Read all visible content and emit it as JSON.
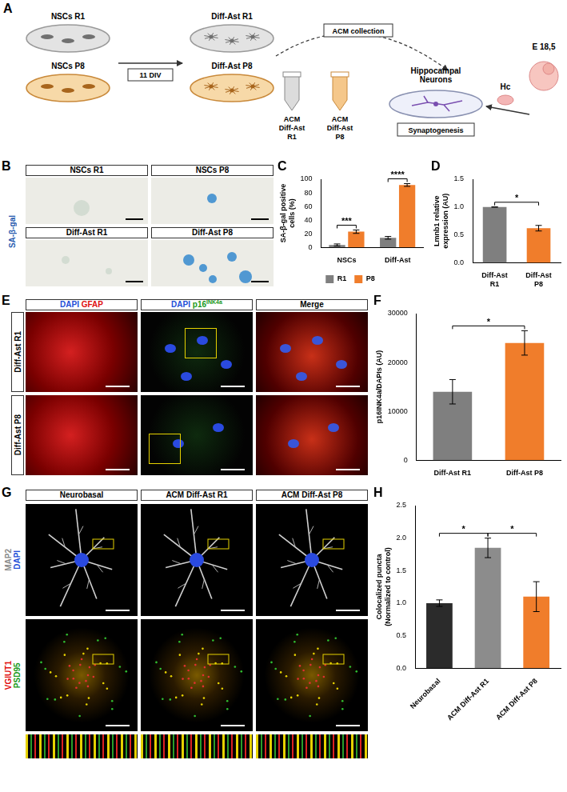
{
  "schematic": {
    "panel": "A",
    "source_dishes": [
      "NSCs R1",
      "NSCs P8"
    ],
    "step": "11 DIV",
    "target_dishes": [
      "Diff-Ast R1",
      "Diff-Ast P8"
    ],
    "collection": "ACM collection",
    "tubes": [
      "ACM Diff-Ast R1",
      "ACM Diff-Ast P8"
    ],
    "neurons": "Hippocampal Neurons",
    "assay": "Synaptogenesis",
    "tissue": "Hc",
    "embryo": "E 18,5"
  },
  "images_B": {
    "panel": "B",
    "row_title": "SA-β-gal",
    "cells": [
      [
        "NSCs R1",
        "NSCs P8"
      ],
      [
        "Diff-Ast R1",
        "Diff-Ast P8"
      ]
    ]
  },
  "images_E": {
    "panel": "E",
    "columns": [
      [
        {
          "text": "DAPI",
          "color": "#1f4fd8"
        },
        {
          "text": "GFAP",
          "color": "#e01010"
        }
      ],
      [
        {
          "text": "DAPI",
          "color": "#1f4fd8"
        },
        {
          "text": "p16",
          "sup": "INK4a",
          "color": "#1a9a1a"
        }
      ],
      [
        {
          "text": "Merge"
        }
      ]
    ],
    "rows": [
      "Diff-Ast R1",
      "Diff-Ast P8"
    ]
  },
  "images_G": {
    "panel": "G",
    "columns": [
      "Neurobasal",
      "ACM Diff-Ast R1",
      "ACM Diff-Ast P8"
    ],
    "rows": [
      [
        {
          "text": "MAP2",
          "color": "#8a8a8a"
        },
        {
          "text": "DAPI",
          "color": "#1f4fd8"
        }
      ],
      [
        {
          "text": "VGlUT1",
          "color": "#e01010"
        },
        {
          "text": "PSD95",
          "color": "#1a9a1a"
        }
      ]
    ]
  },
  "chart_data": [
    {
      "panel": "C",
      "type": "bar",
      "categories": [
        "NSCs",
        "Diff-Ast"
      ],
      "series": [
        {
          "name": "R1",
          "color": "#7f7f7f",
          "values": [
            3.5,
            14
          ],
          "errors": [
            1.5,
            2
          ]
        },
        {
          "name": "P8",
          "color": "#f07d2b",
          "values": [
            23,
            91.5
          ],
          "errors": [
            2.5,
            2
          ]
        }
      ],
      "y_label": "SA-β-gal positive cells (%)",
      "ylim": [
        0,
        100
      ],
      "yticks": [
        0,
        20,
        40,
        60,
        80,
        100
      ],
      "grid": false,
      "legend": "bottom",
      "annotations": [
        {
          "text": "***",
          "between": [
            [
              "NSCs",
              "R1"
            ],
            [
              "NSCs",
              "P8"
            ]
          ]
        },
        {
          "text": "****",
          "between": [
            [
              "Diff-Ast",
              "R1"
            ],
            [
              "Diff-Ast",
              "P8"
            ]
          ]
        }
      ]
    },
    {
      "panel": "D",
      "type": "bar",
      "categories": [
        "Diff-Ast R1",
        "Diff-Ast P8"
      ],
      "values": [
        1.0,
        0.62
      ],
      "errors": [
        0,
        0.05
      ],
      "colors": [
        "#7f7f7f",
        "#f07d2b"
      ],
      "y_label": "Lmnb1 relative expression (AU)",
      "ylim": [
        0,
        1.5
      ],
      "yticks": [
        {
          "value": 0,
          "label": "0.0"
        },
        {
          "value": 0.5,
          "label": "0.5"
        },
        {
          "value": 1,
          "label": "1.0"
        },
        {
          "value": 1.5,
          "label": "1.5"
        }
      ],
      "grid": false,
      "annotations": [
        {
          "text": "*",
          "between": [
            "Diff-Ast R1",
            "Diff-Ast P8"
          ]
        }
      ]
    },
    {
      "panel": "F",
      "type": "bar",
      "categories": [
        "Diff-Ast R1",
        "Diff-Ast P8"
      ],
      "values": [
        14000,
        24000
      ],
      "errors": [
        2500,
        2500
      ],
      "colors": [
        "#7f7f7f",
        "#f07d2b"
      ],
      "y_label": "p16INK4a/DAPIs (AU)",
      "ylim": [
        0,
        30000
      ],
      "yticks": [
        0,
        10000,
        20000,
        30000
      ],
      "grid": false,
      "annotations": [
        {
          "text": "*",
          "between": [
            "Diff-Ast R1",
            "Diff-Ast P8"
          ]
        }
      ]
    },
    {
      "panel": "H",
      "type": "bar",
      "categories": [
        "Neurobasal",
        "ACM Diff-Ast R1",
        "ACM Diff-Ast P8"
      ],
      "values": [
        1.0,
        1.85,
        1.1
      ],
      "errors": [
        0.05,
        0.15,
        0.23
      ],
      "colors": [
        "#2b2b2b",
        "#8c8c8c",
        "#f07d2b"
      ],
      "y_label": "Colocalized puncta (Normalized to control)",
      "ylim": [
        0,
        2.5
      ],
      "yticks": [
        {
          "value": 0,
          "label": "0.0"
        },
        {
          "value": 0.5,
          "label": "0.5"
        },
        {
          "value": 1,
          "label": "1.0"
        },
        {
          "value": 1.5,
          "label": "1.5"
        },
        {
          "value": 2,
          "label": "2.0"
        },
        {
          "value": 2.5,
          "label": "2.5"
        }
      ],
      "grid": false,
      "annotations": [
        {
          "text": "*",
          "between": [
            "Neurobasal",
            "ACM Diff-Ast R1"
          ]
        },
        {
          "text": "*",
          "between": [
            "ACM Diff-Ast R1",
            "ACM Diff-Ast P8"
          ]
        }
      ]
    }
  ]
}
